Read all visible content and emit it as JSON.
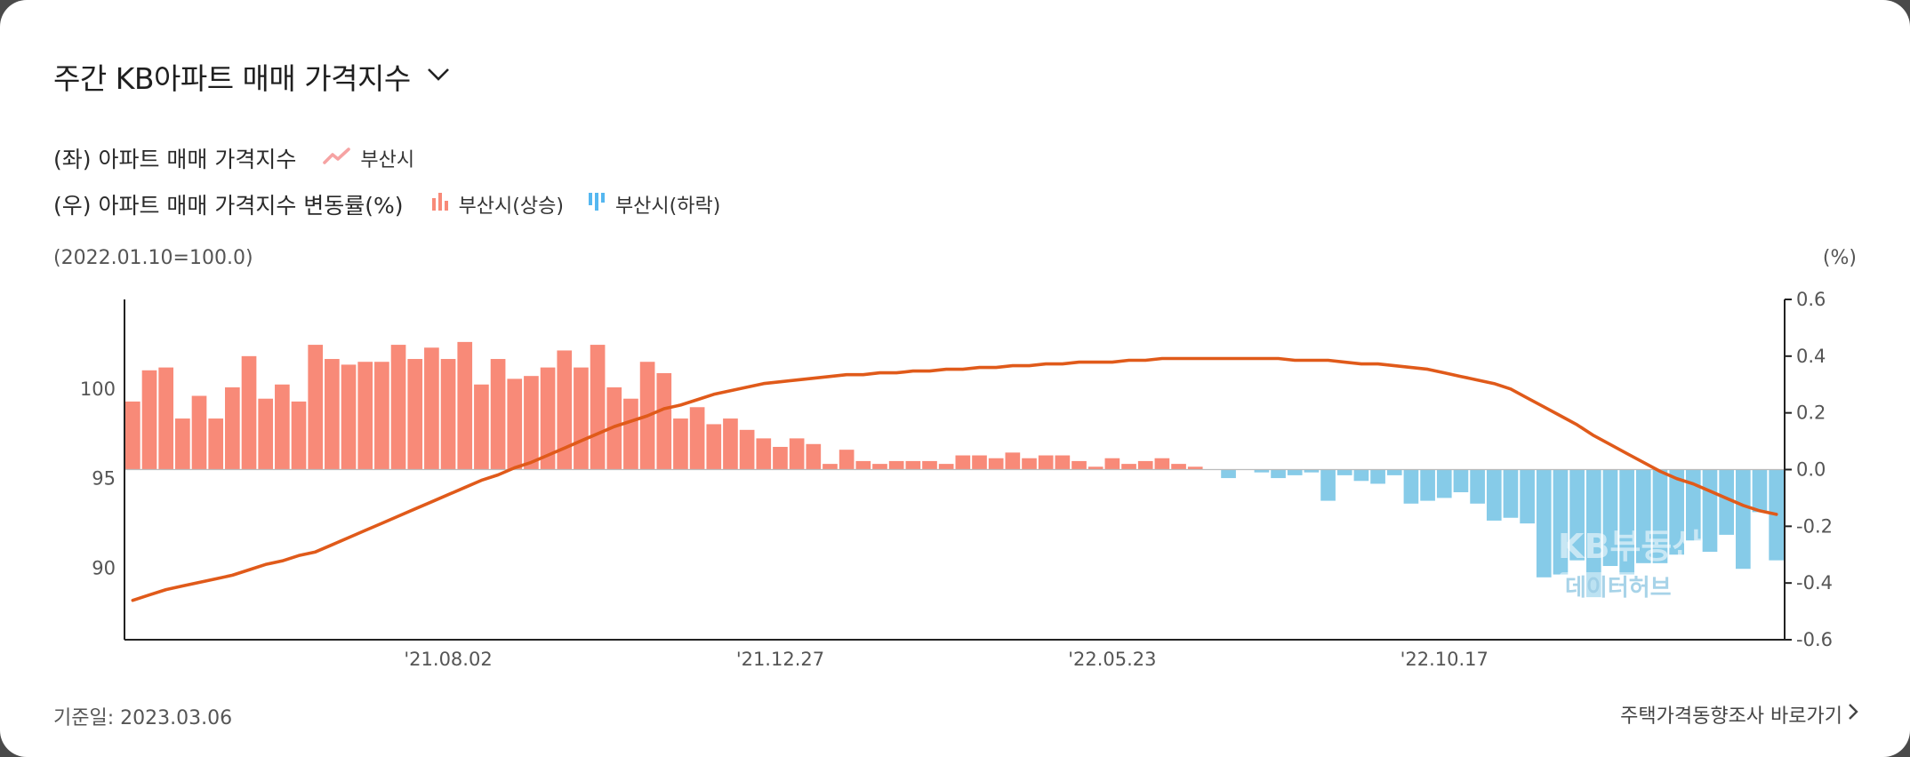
{
  "header": {
    "title": "주간 KB아파트 매매 가격지수",
    "dropdown_icon": "chevron-down-icon"
  },
  "legend": {
    "left_axis_label": "(좌) 아파트 매매 가격지수",
    "left_series": "부산시",
    "right_axis_label": "(우) 아파트 매매 가격지수 변동률(%)",
    "rise_label": "부산시(상승)",
    "fall_label": "부산시(하락)"
  },
  "notes": {
    "base": "(2022.01.10=100.0)",
    "right_unit": "(%)"
  },
  "footer": {
    "date": "기준일: 2023.03.06",
    "link": "주택가격동향조사 바로가기"
  },
  "watermark": {
    "line1": "KB부동산",
    "line2": "데이터허브"
  },
  "colors": {
    "line": "#e05a1a",
    "rise": "#f88a78",
    "fall": "#86cbe8",
    "legend_line": "#f6a3a3",
    "legend_fall": "#55b7f0"
  },
  "chart_data": {
    "type": "bar+line",
    "x_tick_labels": [
      "'21.08.02",
      "'21.12.27",
      "'22.05.23",
      "'22.10.17"
    ],
    "y_left": {
      "ticks": [
        90,
        95,
        100
      ],
      "range": [
        86.0,
        105.0
      ]
    },
    "y_right": {
      "ticks": [
        "0.6",
        "0.4",
        "0.2",
        "0.0",
        "-0.2",
        "-0.4",
        "-0.6"
      ],
      "range": [
        -0.6,
        0.6
      ]
    },
    "change_rate": [
      0.24,
      0.35,
      0.36,
      0.18,
      0.26,
      0.18,
      0.29,
      0.4,
      0.25,
      0.3,
      0.24,
      0.44,
      0.39,
      0.37,
      0.38,
      0.38,
      0.44,
      0.39,
      0.43,
      0.39,
      0.45,
      0.3,
      0.39,
      0.32,
      0.33,
      0.36,
      0.42,
      0.36,
      0.44,
      0.29,
      0.25,
      0.38,
      0.34,
      0.18,
      0.22,
      0.16,
      0.18,
      0.14,
      0.11,
      0.08,
      0.11,
      0.09,
      0.02,
      0.07,
      0.03,
      0.02,
      0.03,
      0.03,
      0.03,
      0.02,
      0.05,
      0.05,
      0.04,
      0.06,
      0.04,
      0.05,
      0.05,
      0.03,
      0.01,
      0.04,
      0.02,
      0.03,
      0.04,
      0.02,
      0.01,
      0.0,
      -0.03,
      0.0,
      -0.01,
      -0.03,
      -0.02,
      -0.01,
      -0.11,
      -0.02,
      -0.04,
      -0.05,
      -0.02,
      -0.12,
      -0.11,
      -0.1,
      -0.08,
      -0.12,
      -0.18,
      -0.17,
      -0.19,
      -0.38,
      -0.37,
      -0.32,
      -0.45,
      -0.34,
      -0.37,
      -0.33,
      -0.33,
      -0.3,
      -0.25,
      -0.29,
      -0.23,
      -0.35,
      -0.15,
      -0.32
    ],
    "price_index": [
      88.2,
      88.5,
      88.8,
      89.0,
      89.2,
      89.4,
      89.6,
      89.9,
      90.2,
      90.4,
      90.7,
      90.9,
      91.3,
      91.7,
      92.1,
      92.5,
      92.9,
      93.3,
      93.7,
      94.1,
      94.5,
      94.9,
      95.2,
      95.6,
      95.9,
      96.3,
      96.7,
      97.1,
      97.5,
      97.9,
      98.2,
      98.5,
      98.9,
      99.1,
      99.4,
      99.7,
      99.9,
      100.1,
      100.3,
      100.4,
      100.5,
      100.6,
      100.7,
      100.8,
      100.8,
      100.9,
      100.9,
      101.0,
      101.0,
      101.1,
      101.1,
      101.2,
      101.2,
      101.3,
      101.3,
      101.4,
      101.4,
      101.5,
      101.5,
      101.5,
      101.6,
      101.6,
      101.7,
      101.7,
      101.7,
      101.7,
      101.7,
      101.7,
      101.7,
      101.7,
      101.6,
      101.6,
      101.6,
      101.5,
      101.4,
      101.4,
      101.3,
      101.2,
      101.1,
      100.9,
      100.7,
      100.5,
      100.3,
      100.0,
      99.5,
      99.0,
      98.5,
      98.0,
      97.4,
      96.9,
      96.4,
      95.9,
      95.4,
      95.0,
      94.7,
      94.3,
      93.9,
      93.5,
      93.2,
      93.0
    ]
  }
}
